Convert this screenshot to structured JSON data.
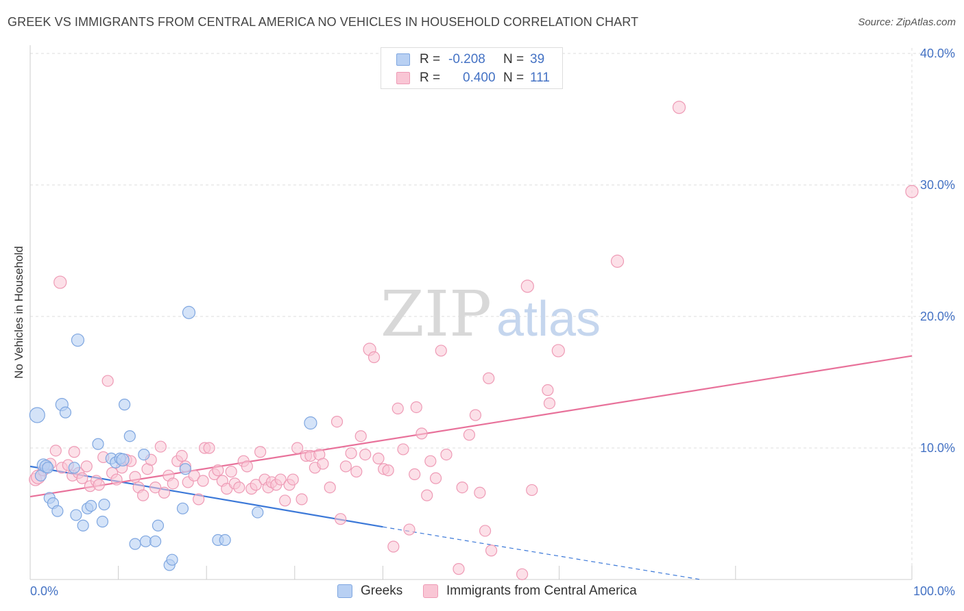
{
  "header": {
    "title": "GREEK VS IMMIGRANTS FROM CENTRAL AMERICA NO VEHICLES IN HOUSEHOLD CORRELATION CHART",
    "source": "Source: ZipAtlas.com"
  },
  "watermark": {
    "zip": "ZIP",
    "atlas": "atlas"
  },
  "legend": {
    "items": [
      {
        "r_label": "R =",
        "r_value": "-0.208",
        "n_label": "N =",
        "n_value": "39"
      },
      {
        "r_label": "R =",
        "r_value": "0.400",
        "n_label": "N =",
        "n_value": "111"
      }
    ]
  },
  "colors": {
    "greek_fill": "#b8d0f3",
    "greek_stroke": "#7ea6e0",
    "greek_line": "#3b78d8",
    "cam_fill": "#f9c6d5",
    "cam_stroke": "#ee9ab5",
    "cam_line": "#e8719a",
    "axis_text": "#4472c4",
    "grid": "#dddddd"
  },
  "chart_data": {
    "type": "scatter",
    "title": "GREEK VS IMMIGRANTS FROM CENTRAL AMERICA NO VEHICLES IN HOUSEHOLD CORRELATION CHART",
    "xlabel": "",
    "ylabel": "No Vehicles in Household",
    "xlim": [
      0,
      100
    ],
    "ylim": [
      0,
      40
    ],
    "x_ticks": [
      "0.0%",
      "100.0%"
    ],
    "y_ticks": [
      "10.0%",
      "20.0%",
      "30.0%",
      "40.0%"
    ],
    "grid": true,
    "legend_position": "top-center",
    "series": [
      {
        "name": "Greeks",
        "r": -0.208,
        "n": 39,
        "trend": {
          "x_start": 0,
          "y_start": 8.6,
          "x_solid_end": 40,
          "y_solid_end": 4.0,
          "x_end": 76,
          "y_end": 0
        },
        "points": [
          [
            0.8,
            12.5,
            9
          ],
          [
            1.5,
            8.7,
            7
          ],
          [
            1.2,
            7.9,
            6
          ],
          [
            1.8,
            8.6,
            7
          ],
          [
            2.0,
            8.5,
            6
          ],
          [
            2.2,
            6.2,
            6
          ],
          [
            2.6,
            5.8,
            6
          ],
          [
            3.1,
            5.2,
            6
          ],
          [
            3.6,
            13.3,
            7
          ],
          [
            4.0,
            12.7,
            6
          ],
          [
            5.0,
            8.5,
            6
          ],
          [
            5.2,
            4.9,
            6
          ],
          [
            5.4,
            18.2,
            7
          ],
          [
            6.0,
            4.1,
            6
          ],
          [
            6.5,
            5.4,
            6
          ],
          [
            6.9,
            5.6,
            6
          ],
          [
            7.7,
            10.3,
            6
          ],
          [
            8.2,
            4.4,
            6
          ],
          [
            8.4,
            5.7,
            6
          ],
          [
            9.2,
            9.2,
            6
          ],
          [
            9.7,
            8.9,
            6
          ],
          [
            10.2,
            9.2,
            6
          ],
          [
            10.5,
            9.1,
            7
          ],
          [
            10.7,
            13.3,
            6
          ],
          [
            11.3,
            10.9,
            6
          ],
          [
            11.9,
            2.7,
            6
          ],
          [
            12.9,
            9.5,
            6
          ],
          [
            13.1,
            2.9,
            6
          ],
          [
            14.2,
            2.9,
            6
          ],
          [
            14.5,
            4.1,
            6
          ],
          [
            15.8,
            1.1,
            6
          ],
          [
            16.1,
            1.5,
            6
          ],
          [
            17.3,
            5.4,
            6
          ],
          [
            17.6,
            8.4,
            6
          ],
          [
            18.0,
            20.3,
            7
          ],
          [
            21.3,
            3.0,
            6
          ],
          [
            22.1,
            3.0,
            6
          ],
          [
            25.8,
            5.1,
            6
          ],
          [
            31.8,
            11.9,
            7
          ]
        ]
      },
      {
        "name": "Immigrants from Central America",
        "r": 0.4,
        "n": 111,
        "trend": {
          "x_start": 0,
          "y_start": 6.3,
          "x_end": 100,
          "y_end": 17.0
        },
        "points": [
          [
            0.6,
            7.6,
            7
          ],
          [
            0.9,
            7.8,
            8
          ],
          [
            1.5,
            8.3,
            6
          ],
          [
            2.3,
            8.8,
            6
          ],
          [
            2.9,
            9.8,
            6
          ],
          [
            3.4,
            22.6,
            7
          ],
          [
            3.6,
            8.5,
            6
          ],
          [
            4.3,
            8.7,
            6
          ],
          [
            4.8,
            7.9,
            6
          ],
          [
            5.0,
            9.7,
            6
          ],
          [
            5.5,
            8.1,
            6
          ],
          [
            5.9,
            7.7,
            6
          ],
          [
            6.4,
            8.6,
            6
          ],
          [
            6.8,
            7.1,
            6
          ],
          [
            7.5,
            7.5,
            6
          ],
          [
            7.8,
            7.2,
            6
          ],
          [
            8.3,
            9.3,
            6
          ],
          [
            8.8,
            15.1,
            6
          ],
          [
            9.3,
            8.1,
            6
          ],
          [
            9.8,
            7.6,
            6
          ],
          [
            10.4,
            8.5,
            6
          ],
          [
            10.9,
            9.1,
            6
          ],
          [
            11.4,
            9.0,
            6
          ],
          [
            11.9,
            7.8,
            6
          ],
          [
            12.3,
            7.0,
            6
          ],
          [
            12.8,
            6.4,
            6
          ],
          [
            13.3,
            8.4,
            6
          ],
          [
            13.7,
            9.1,
            6
          ],
          [
            14.2,
            7.0,
            6
          ],
          [
            14.8,
            10.1,
            6
          ],
          [
            15.2,
            6.6,
            6
          ],
          [
            15.7,
            7.9,
            6
          ],
          [
            16.2,
            7.3,
            6
          ],
          [
            16.7,
            9.0,
            6
          ],
          [
            17.2,
            9.4,
            6
          ],
          [
            17.6,
            8.6,
            6
          ],
          [
            17.9,
            7.4,
            6
          ],
          [
            18.6,
            7.9,
            6
          ],
          [
            19.1,
            6.1,
            6
          ],
          [
            19.6,
            7.5,
            6
          ],
          [
            19.8,
            10.0,
            6
          ],
          [
            20.3,
            10.0,
            6
          ],
          [
            20.9,
            8.0,
            6
          ],
          [
            21.3,
            8.3,
            6
          ],
          [
            21.8,
            7.5,
            6
          ],
          [
            22.3,
            6.9,
            6
          ],
          [
            22.8,
            8.2,
            6
          ],
          [
            23.2,
            7.3,
            6
          ],
          [
            23.7,
            7.0,
            6
          ],
          [
            24.2,
            9.0,
            6
          ],
          [
            24.6,
            8.6,
            6
          ],
          [
            25.1,
            6.9,
            6
          ],
          [
            25.6,
            7.2,
            6
          ],
          [
            26.1,
            9.7,
            6
          ],
          [
            26.6,
            7.6,
            6
          ],
          [
            27.0,
            7.0,
            6
          ],
          [
            27.4,
            7.4,
            6
          ],
          [
            27.9,
            7.2,
            6
          ],
          [
            28.4,
            7.6,
            6
          ],
          [
            28.9,
            6.0,
            6
          ],
          [
            29.4,
            7.2,
            6
          ],
          [
            29.8,
            7.6,
            6
          ],
          [
            30.3,
            10.0,
            6
          ],
          [
            30.8,
            6.1,
            6
          ],
          [
            31.3,
            9.4,
            6
          ],
          [
            31.8,
            9.4,
            6
          ],
          [
            32.3,
            8.5,
            6
          ],
          [
            32.8,
            9.5,
            6
          ],
          [
            33.2,
            8.8,
            6
          ],
          [
            34.0,
            7.0,
            6
          ],
          [
            34.8,
            12.0,
            6
          ],
          [
            35.2,
            4.6,
            6
          ],
          [
            35.8,
            8.6,
            6
          ],
          [
            36.4,
            9.6,
            6
          ],
          [
            37.0,
            8.2,
            6
          ],
          [
            37.5,
            10.9,
            6
          ],
          [
            38.0,
            9.5,
            6
          ],
          [
            38.5,
            17.5,
            7
          ],
          [
            39.0,
            16.9,
            6
          ],
          [
            39.5,
            9.2,
            6
          ],
          [
            40.1,
            8.4,
            6
          ],
          [
            40.6,
            8.3,
            6
          ],
          [
            41.2,
            2.5,
            6
          ],
          [
            41.7,
            13.0,
            6
          ],
          [
            42.3,
            9.9,
            6
          ],
          [
            43.0,
            3.8,
            6
          ],
          [
            43.6,
            8.0,
            6
          ],
          [
            43.8,
            13.1,
            6
          ],
          [
            44.4,
            11.1,
            6
          ],
          [
            45.0,
            6.4,
            6
          ],
          [
            45.4,
            9.0,
            6
          ],
          [
            46.0,
            7.7,
            6
          ],
          [
            46.6,
            17.4,
            6
          ],
          [
            47.2,
            9.5,
            6
          ],
          [
            48.6,
            0.8,
            6
          ],
          [
            49.0,
            7.0,
            6
          ],
          [
            49.8,
            11.0,
            6
          ],
          [
            50.5,
            12.5,
            6
          ],
          [
            51.0,
            6.6,
            6
          ],
          [
            51.6,
            3.7,
            6
          ],
          [
            52.0,
            15.3,
            6
          ],
          [
            52.3,
            2.2,
            6
          ],
          [
            55.8,
            0.4,
            6
          ],
          [
            56.4,
            22.3,
            7
          ],
          [
            56.9,
            6.8,
            6
          ],
          [
            58.7,
            14.4,
            6
          ],
          [
            58.9,
            13.4,
            6
          ],
          [
            59.9,
            17.4,
            7
          ],
          [
            66.6,
            24.2,
            7
          ],
          [
            73.6,
            35.9,
            7
          ],
          [
            100.0,
            29.5,
            7
          ]
        ]
      }
    ]
  },
  "bottom_legend": {
    "greeks": "Greeks",
    "cam": "Immigrants from Central America"
  }
}
